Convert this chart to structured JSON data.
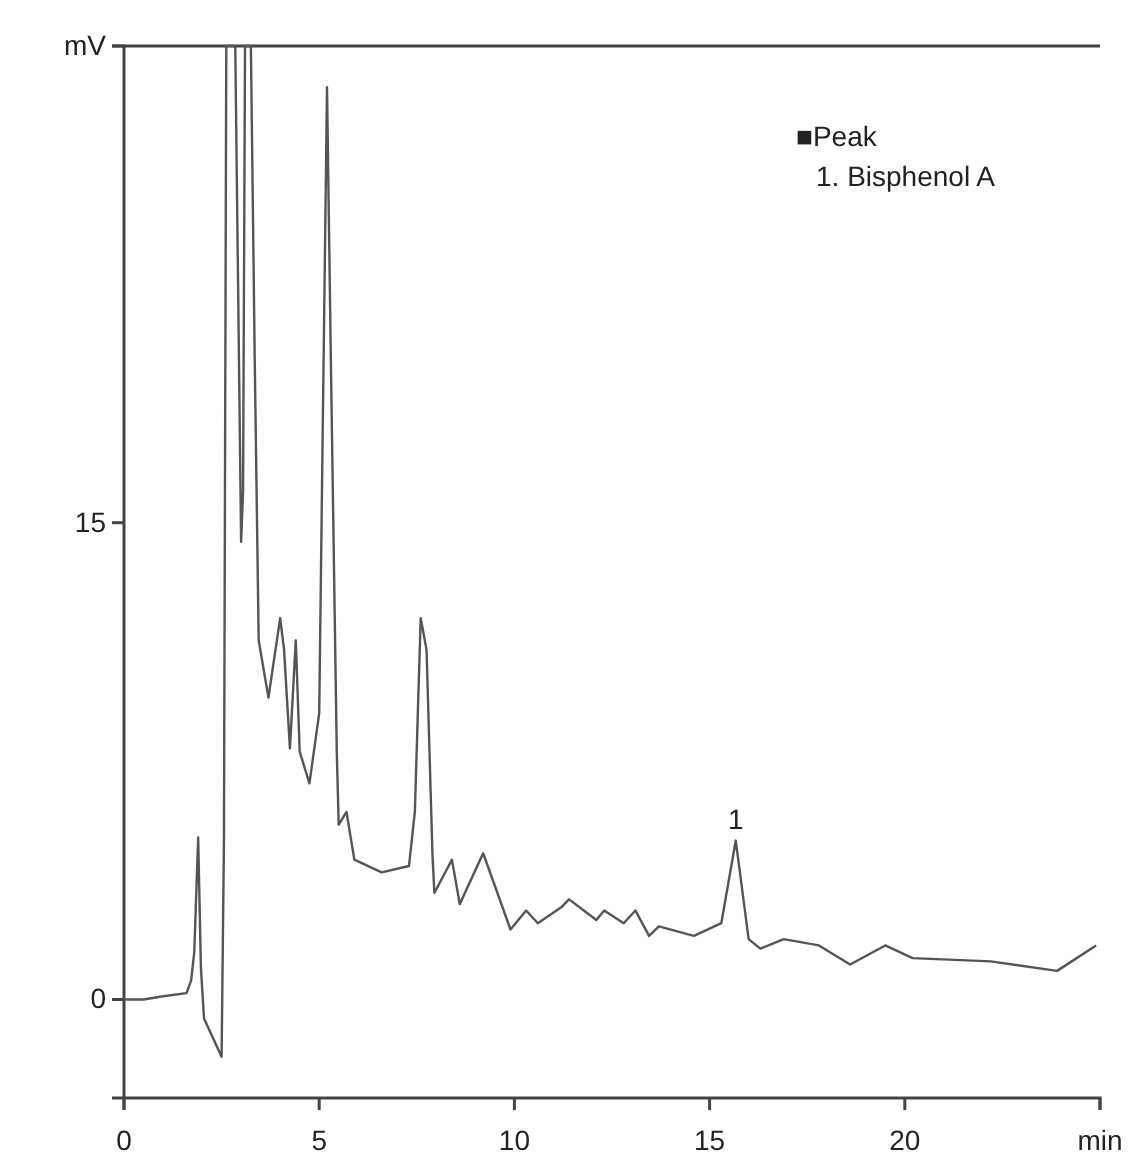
{
  "chart_data": {
    "type": "line",
    "xlim": [
      0,
      25
    ],
    "ylim": [
      -3.1,
      30
    ],
    "xticks": [
      0,
      5,
      10,
      15,
      20,
      {
        "value": 25,
        "label": "min"
      }
    ],
    "yticks": [
      0,
      15,
      {
        "value": 30,
        "label": "mV"
      }
    ],
    "grid": false,
    "marker": "none",
    "line_style": "solid",
    "annotations": [
      {
        "text": "1",
        "x": 15.67,
        "y": 5.0
      },
      "■Peak",
      "1. Bisphenol A"
    ],
    "series": [
      {
        "color": "#555555",
        "x": [
          0,
          0.5,
          1.0,
          1.6,
          1.72,
          1.8,
          1.9,
          1.97,
          2.05,
          2.2,
          2.5,
          2.56,
          2.62,
          2.7,
          2.85,
          3.0,
          3.05,
          3.1,
          3.25,
          3.35,
          3.45,
          3.7,
          4.0,
          4.1,
          4.25,
          4.4,
          4.5,
          4.75,
          5.0,
          5.2,
          5.3,
          5.45,
          5.5,
          5.7,
          5.9,
          6.6,
          7.3,
          7.45,
          7.6,
          7.75,
          7.9,
          7.95,
          8.4,
          8.6,
          9.2,
          9.9,
          10.3,
          10.6,
          11.2,
          11.4,
          12.1,
          12.3,
          12.8,
          13.1,
          13.45,
          13.7,
          14.6,
          15.3,
          15.67,
          16.0,
          16.3,
          16.9,
          17.8,
          18.6,
          19.5,
          20.2,
          22.2,
          23.9,
          24.9
        ],
        "values": [
          0,
          0,
          0.1,
          0.2,
          0.6,
          1.5,
          5.1,
          1.0,
          -0.6,
          -1.0,
          -1.8,
          5,
          30,
          30,
          30,
          14.4,
          16,
          30,
          30,
          20,
          11.3,
          9.5,
          12,
          11,
          7.9,
          11.3,
          7.8,
          6.8,
          9,
          28.7,
          20,
          7.8,
          5.5,
          5.9,
          4.4,
          4.0,
          4.2,
          5.9,
          12,
          11,
          4.6,
          3.35,
          4.4,
          3.0,
          4.6,
          2.2,
          2.8,
          2.4,
          2.9,
          3.15,
          2.5,
          2.8,
          2.4,
          2.8,
          2.0,
          2.3,
          2.0,
          2.4,
          5.0,
          1.9,
          1.6,
          1.9,
          1.7,
          1.1,
          1.7,
          1.3,
          1.2,
          0.9,
          1.7
        ]
      }
    ]
  }
}
